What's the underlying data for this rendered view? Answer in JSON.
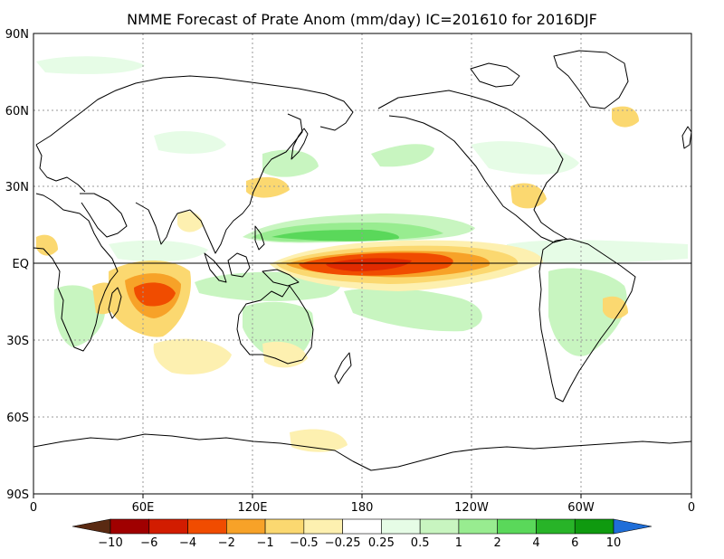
{
  "title": "NMME Forecast of Prate Anom (mm/day) IC=201610 for 2016DJF",
  "y_ticks": [
    "90N",
    "60N",
    "30N",
    "EQ",
    "30S",
    "60S",
    "90S"
  ],
  "x_ticks": [
    "0",
    "60E",
    "120E",
    "180",
    "120W",
    "60W",
    "0"
  ],
  "colorbar": {
    "labels": [
      "−10",
      "−6",
      "−4",
      "−2",
      "−1",
      "−0.5",
      "−0.25",
      "0.25",
      "0.5",
      "1",
      "2",
      "4",
      "6",
      "10"
    ],
    "colors": [
      "#5a2a12",
      "#a00000",
      "#d21c00",
      "#f04c00",
      "#f7a228",
      "#fbd870",
      "#fdf0b0",
      "#ffffff",
      "#e6fce6",
      "#c8f5c0",
      "#98ec90",
      "#5ad85a",
      "#28b428",
      "#0f9a0f",
      "#1f6ed8"
    ]
  },
  "colors": {
    "dry_strong": "#f04c00",
    "dry_peak": "#e12a00",
    "dry_moderate": "#f7a228",
    "dry_weak": "#fbd870",
    "dry_light": "#fdf0b0",
    "wet_light": "#e6fce6",
    "wet_weak": "#c8f5c0",
    "wet_moderate": "#98ec90",
    "wet_strong": "#5ad85a"
  }
}
